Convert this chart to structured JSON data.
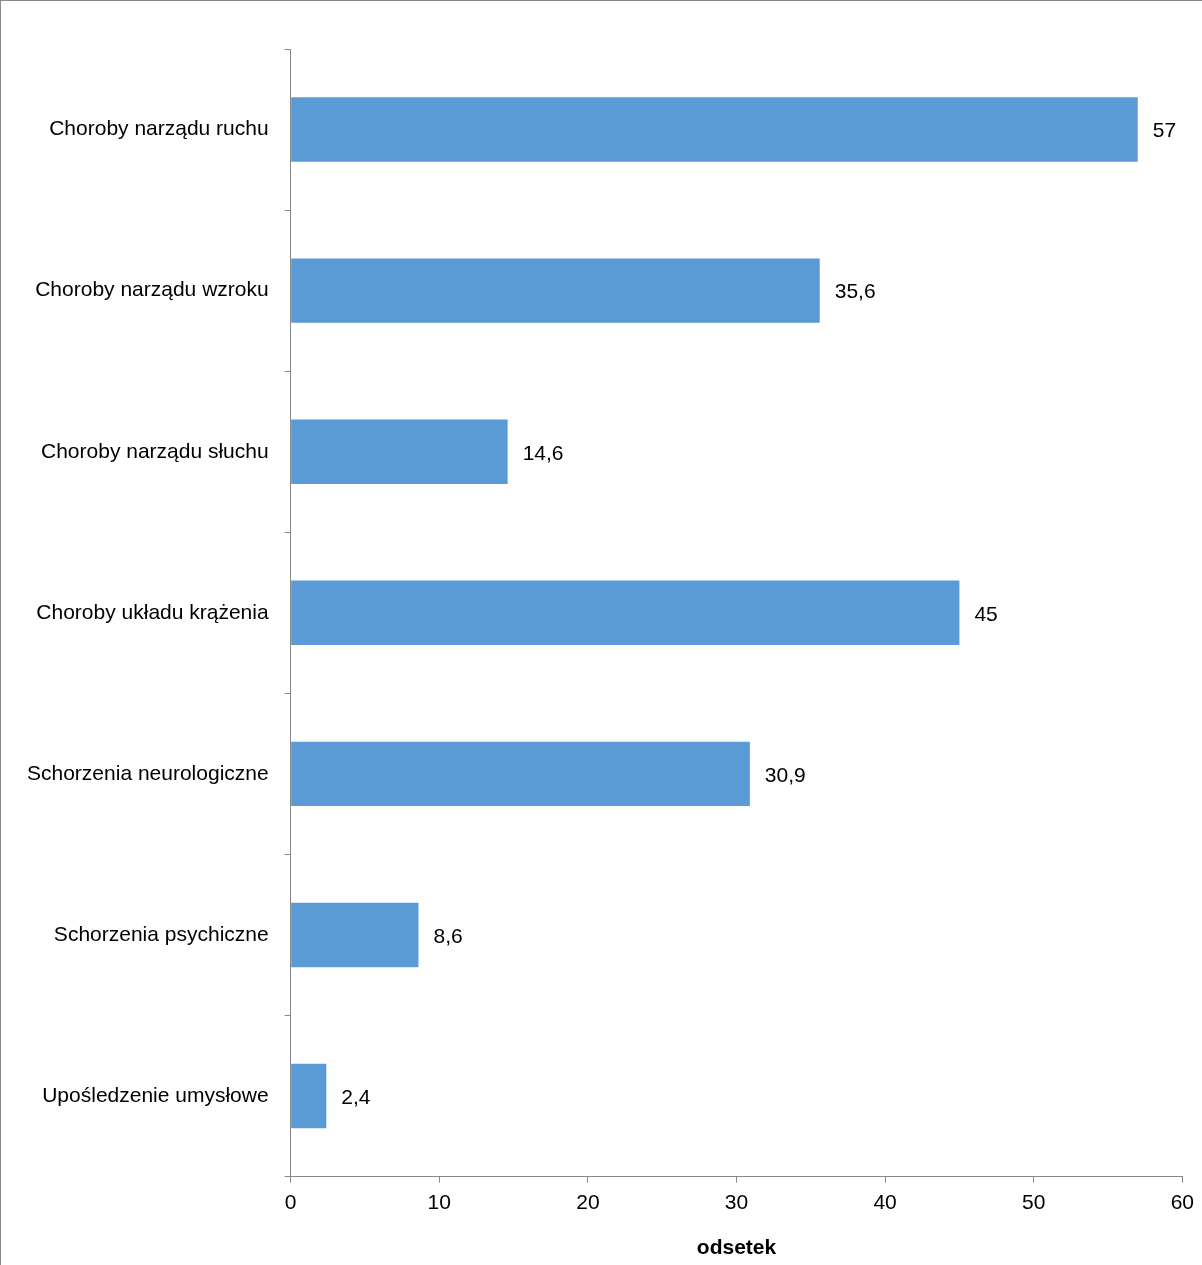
{
  "chart_data": {
    "type": "bar",
    "orientation": "horizontal",
    "xlabel": "odsetek",
    "categories": [
      "Choroby narządu ruchu",
      "Choroby narządu wzroku",
      "Choroby narządu słuchu",
      "Choroby układu krążenia",
      "Schorzenia neurologiczne",
      "Schorzenia psychiczne",
      "Upośledzenie umysłowe"
    ],
    "values": [
      57,
      35.6,
      14.6,
      45,
      30.9,
      8.6,
      2.4
    ],
    "value_labels": [
      "57",
      "35,6",
      "14,6",
      "45",
      "30,9",
      "8,6",
      "2,4"
    ],
    "color": "#5b9bd5",
    "xlim": [
      0,
      60
    ],
    "xticks": [
      0,
      10,
      20,
      30,
      40,
      50,
      60
    ],
    "grid": false
  }
}
